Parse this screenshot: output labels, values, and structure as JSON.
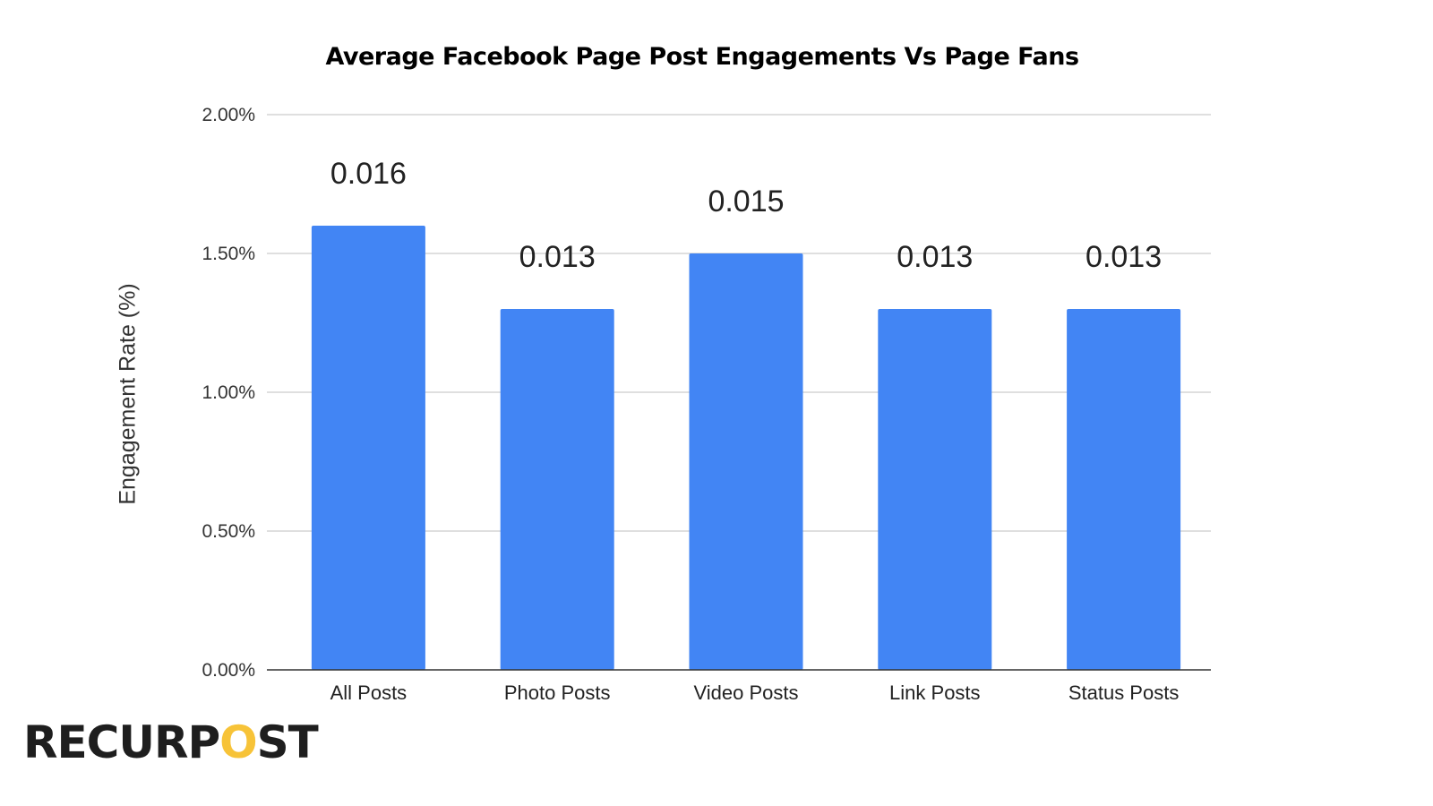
{
  "chart_data": {
    "type": "bar",
    "title": "Average Facebook Page Post Engagements Vs Page Fans",
    "xlabel": "",
    "ylabel": "Engagement Rate (%)",
    "categories": [
      "All Posts",
      "Photo Posts",
      "Video Posts",
      "Link Posts",
      "Status Posts"
    ],
    "values": [
      0.016,
      0.013,
      0.015,
      0.013,
      0.013
    ],
    "data_labels": [
      "0.016",
      "0.013",
      "0.015",
      "0.013",
      "0.013"
    ],
    "ylim": [
      0,
      0.02
    ],
    "yticks": [
      0,
      0.005,
      0.01,
      0.015,
      0.02
    ],
    "ytick_labels": [
      "0.00%",
      "0.50%",
      "1.00%",
      "1.50%",
      "2.00%"
    ],
    "grid": true,
    "bar_color": "#4285f4"
  },
  "logo": {
    "text_before": "RECURP",
    "text_o": "O",
    "text_after": "ST",
    "accent": "#f7c338"
  }
}
